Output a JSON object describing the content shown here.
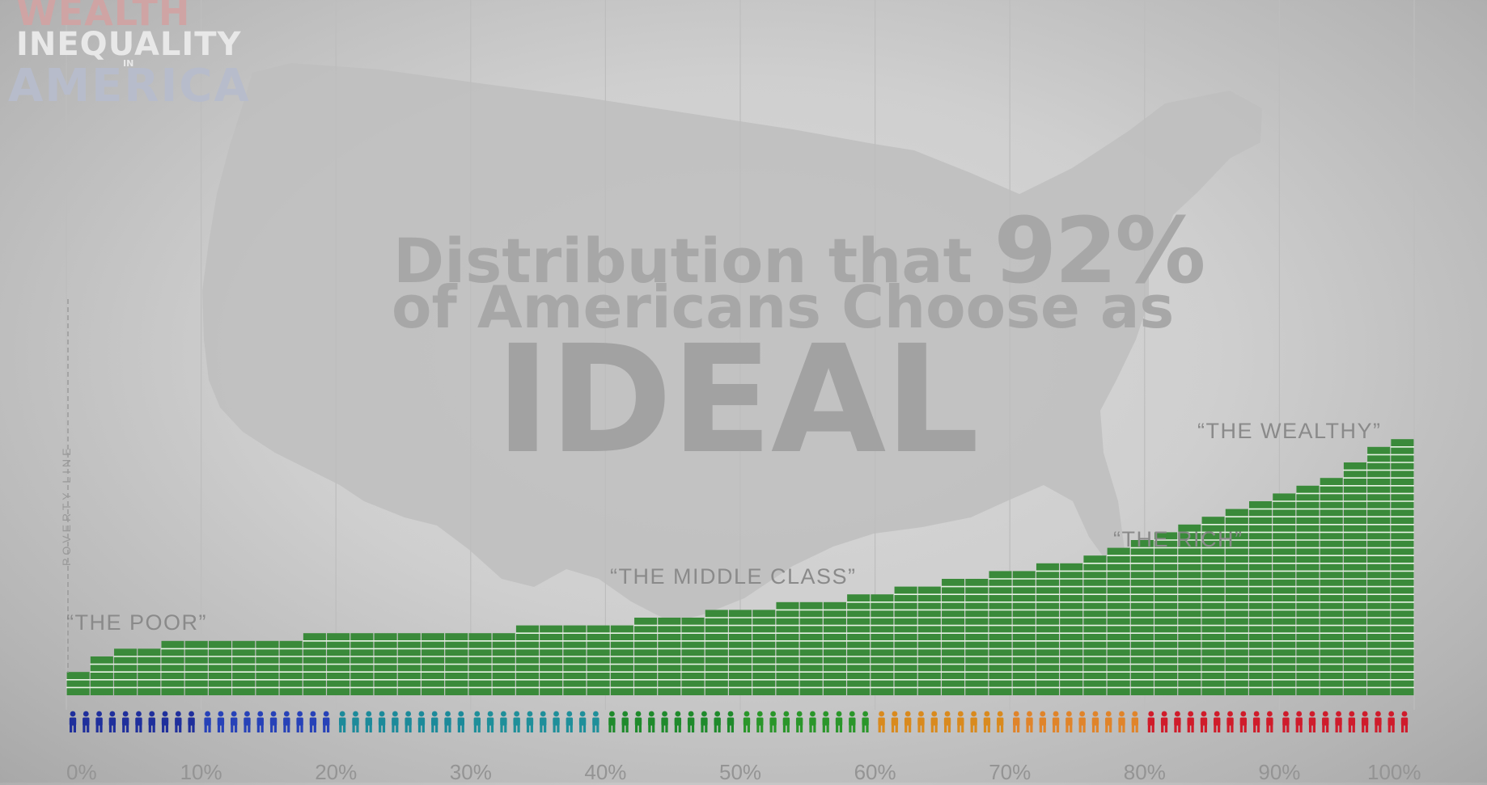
{
  "logo": {
    "line1": "WEALTH",
    "line2": "INEQUALITY",
    "line3": "IN",
    "line4": "AMERICA"
  },
  "title": {
    "part1": "Distribution that ",
    "highlight": "92%",
    "part2": "of Americans Choose as",
    "emphasis": "IDEAL"
  },
  "colors": {
    "bar": "#3a8a3a",
    "bar_line": "#e9f3e6",
    "grid": "#bdbdbd",
    "title_gray": "#a7a7a7"
  },
  "chart_data": {
    "type": "bar",
    "title": "Distribution that 92% of Americans Choose as IDEAL",
    "xlabel": "",
    "ylabel": "",
    "x_ticks": [
      "0%",
      "10%",
      "20%",
      "30%",
      "40%",
      "50%",
      "60%",
      "70%",
      "80%",
      "90%",
      "100%"
    ],
    "y_axis": "hidden",
    "ylim": [
      0,
      33
    ],
    "grid": "vertical lines at each 10%",
    "bar_segments": [
      3,
      5,
      5,
      6,
      6,
      6,
      6,
      7,
      7,
      7,
      7,
      7,
      7,
      7,
      7,
      7,
      7,
      7,
      7,
      7,
      7,
      7,
      8,
      8,
      8,
      8,
      8,
      8,
      8,
      8,
      8,
      8,
      8,
      8,
      8,
      8,
      8,
      8,
      8,
      8,
      8,
      8,
      8,
      9,
      9,
      9,
      9,
      9,
      9,
      9,
      9,
      9,
      9,
      9,
      9,
      9,
      9,
      9,
      9,
      9,
      9,
      9,
      9,
      9,
      9,
      9,
      9,
      9,
      9,
      9,
      9,
      10,
      10,
      10,
      10,
      10,
      10,
      10,
      10,
      10,
      11,
      11,
      11,
      11,
      11,
      11,
      11,
      11,
      11,
      11,
      11,
      11,
      11,
      11,
      11,
      11,
      11,
      12,
      12,
      12,
      12,
      12,
      12,
      12,
      12,
      12,
      12,
      12,
      12,
      12,
      13,
      13,
      13,
      13,
      13,
      13,
      13,
      13,
      13,
      13,
      13,
      13,
      13,
      13,
      13,
      13,
      14,
      14,
      14,
      14,
      14,
      14,
      14,
      14,
      14,
      14,
      14,
      14,
      14,
      14,
      14,
      14,
      14,
      14,
      14,
      14,
      14,
      14,
      14,
      14,
      14,
      14,
      14,
      14,
      14,
      15,
      15,
      15,
      15,
      15,
      15,
      15,
      15,
      15,
      15,
      15,
      15,
      15,
      15,
      15,
      15,
      15,
      15,
      15,
      15,
      15,
      15,
      15,
      15,
      15,
      15,
      15,
      15,
      15,
      15,
      15,
      15,
      15,
      15,
      15,
      15,
      15,
      15,
      15,
      15,
      15,
      15,
      15,
      15,
      15,
      15,
      15,
      15,
      15,
      15,
      15,
      15,
      15,
      15,
      16,
      16,
      16,
      16,
      16,
      16,
      16,
      16,
      16,
      16,
      16,
      16,
      16,
      16,
      16,
      16,
      16,
      16,
      16,
      16,
      16,
      16,
      16,
      16,
      16,
      16,
      16,
      16,
      16,
      16,
      16,
      16,
      16,
      16,
      16,
      16,
      16,
      16,
      16,
      16,
      16,
      16,
      16,
      16,
      16,
      16,
      16,
      16,
      16,
      16,
      16,
      16,
      16,
      16,
      16,
      16,
      16,
      16,
      16,
      16,
      16,
      16,
      16,
      16,
      16,
      17,
      17,
      17,
      17,
      17,
      17,
      17,
      17,
      17,
      17,
      17,
      17,
      17,
      17,
      17,
      17,
      17,
      17,
      17,
      17,
      17,
      17,
      17,
      17,
      17,
      17,
      17,
      17,
      17,
      17,
      17,
      17,
      17,
      17,
      17,
      17,
      17,
      17,
      17,
      17,
      17,
      17,
      17,
      17,
      17,
      17,
      17,
      17,
      17,
      17,
      17,
      17,
      17,
      17,
      17,
      17,
      17,
      17,
      17,
      17,
      17,
      17,
      17,
      17,
      17,
      17,
      17,
      17,
      17,
      17,
      17,
      17,
      17,
      17,
      17,
      17,
      17,
      17,
      17,
      17,
      17,
      17,
      17,
      17,
      17,
      17,
      17,
      17,
      17,
      17,
      17,
      17,
      17,
      17,
      17,
      17,
      17,
      17,
      17,
      17,
      17,
      17,
      17,
      17,
      17,
      17,
      17,
      17,
      17,
      18,
      18,
      18,
      18,
      18,
      18,
      18,
      18,
      18,
      18,
      18,
      18,
      18,
      18,
      18,
      18,
      18,
      18,
      18,
      18,
      18,
      18,
      18,
      18,
      18,
      18,
      18,
      18,
      18,
      18,
      18,
      18,
      18,
      18,
      18,
      18,
      18,
      18,
      18,
      18,
      18,
      18,
      18,
      18,
      18,
      18,
      18,
      18,
      18,
      18,
      19,
      19,
      19,
      19,
      19,
      19,
      19,
      19,
      19,
      19,
      19,
      19,
      19,
      19,
      19,
      19,
      19,
      19,
      19,
      19,
      19,
      19,
      19,
      19,
      19,
      19,
      19,
      19,
      19,
      19,
      19,
      19,
      19,
      20,
      20,
      20,
      20,
      20,
      20,
      20,
      20,
      20,
      20,
      20,
      20,
      20,
      20,
      20,
      20,
      20,
      20,
      20,
      20,
      20,
      20,
      20,
      20,
      20,
      20,
      21,
      21,
      21,
      21,
      21,
      21,
      21,
      21,
      21,
      21,
      21,
      22,
      22,
      22,
      22,
      22,
      22,
      22,
      22,
      22,
      22,
      22,
      22,
      22,
      22,
      23,
      23,
      23,
      23,
      23,
      23,
      23,
      23,
      23,
      24,
      24,
      24,
      24,
      24,
      24,
      24,
      24,
      24,
      25,
      25,
      25,
      25,
      25,
      26,
      26,
      26,
      26,
      26,
      27,
      27,
      27,
      27,
      27,
      27,
      28,
      28,
      28,
      29,
      29,
      29,
      30,
      30,
      31,
      31,
      32,
      33,
      33,
      33,
      33
    ],
    "series": [
      {
        "name": "",
        "values": [
          3,
          5,
          6,
          6,
          7,
          7,
          7,
          7,
          7,
          7,
          8,
          8,
          8,
          8,
          8,
          8,
          8,
          8,
          8,
          9,
          9,
          9,
          9,
          9,
          10,
          10,
          10,
          11,
          11,
          11,
          12,
          12,
          12,
          13,
          13,
          14,
          14,
          15,
          15,
          16,
          16,
          17,
          17,
          18,
          19,
          20,
          21,
          22,
          23,
          24,
          25,
          26,
          27,
          28,
          30,
          32,
          33
        ]
      }
    ],
    "groups": [
      {
        "range": "0-10%",
        "color": "#1f2f9c"
      },
      {
        "range": "10-20%",
        "color": "#2742b8"
      },
      {
        "range": "20-30%",
        "color": "#1c8a9a"
      },
      {
        "range": "30-40%",
        "color": "#1f8f9a"
      },
      {
        "range": "40-50%",
        "color": "#1f8a2c"
      },
      {
        "range": "50-60%",
        "color": "#2a962a"
      },
      {
        "range": "60-70%",
        "color": "#d98a1e"
      },
      {
        "range": "70-80%",
        "color": "#e0842a"
      },
      {
        "range": "80-90%",
        "color": "#d01c2a"
      },
      {
        "range": "90-100%",
        "color": "#cf1c2c"
      }
    ],
    "annotations": [
      {
        "text": "“THE POOR”",
        "at": "0%"
      },
      {
        "text": "“THE MIDDLE CLASS”",
        "at": "45%"
      },
      {
        "text": "“THE RICH”",
        "at": "80%"
      },
      {
        "text": "“THE WEALTHY”",
        "at": "95%"
      },
      {
        "text": "POVERTY LINE",
        "at": "0%"
      }
    ]
  }
}
